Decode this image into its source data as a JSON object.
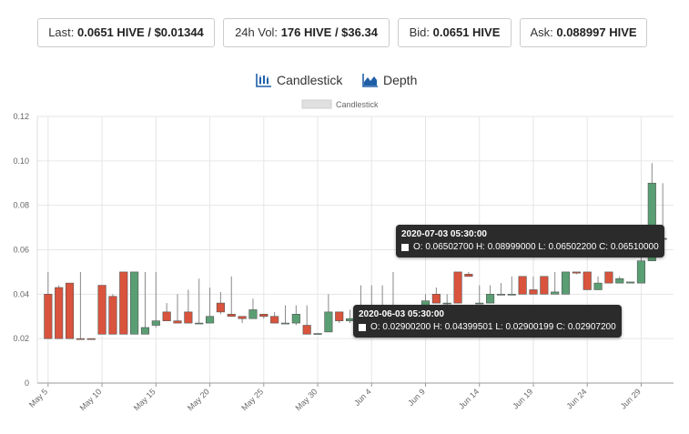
{
  "stats": [
    {
      "label": "Last:",
      "value": "0.0651 HIVE / $0.01344"
    },
    {
      "label": "24h Vol:",
      "value": "176 HIVE / $36.34"
    },
    {
      "label": "Bid:",
      "value": "0.0651 HIVE"
    },
    {
      "label": "Ask:",
      "value": "0.088997 HIVE"
    }
  ],
  "tabs": {
    "candlestick": {
      "label": "Candlestick",
      "icon": "candlestick-chart-icon"
    },
    "depth": {
      "label": "Depth",
      "icon": "depth-chart-icon"
    }
  },
  "colors": {
    "up": "#5a9e73",
    "down": "#d9533d",
    "accent": "#1f5fa8",
    "tooltip_bg": "#2b2b2b"
  },
  "tooltips": [
    {
      "title": "2020-07-03 05:30:00",
      "text": "O: 0.06502700  H: 0.08999000  L: 0.06502200  C: 0.06510000"
    },
    {
      "title": "2020-06-03 05:30:00",
      "text": "O: 0.02900200  H: 0.04399501  L: 0.02900199  C: 0.02907200"
    }
  ],
  "chart_data": {
    "type": "candlestick",
    "legend": [
      "Candlestick"
    ],
    "legend_position": "top-center",
    "grid": true,
    "ylim": [
      0,
      0.12
    ],
    "y_ticks": [
      "0",
      "0.02",
      "0.04",
      "0.06",
      "0.08",
      "0.10",
      "0.12"
    ],
    "x_ticks": [
      "May 5",
      "May 10",
      "May 15",
      "May 20",
      "May 25",
      "May 30",
      "Jun 4",
      "Jun 9",
      "Jun 14",
      "Jun 19",
      "Jun 24",
      "Jun 29"
    ],
    "series": [
      {
        "name": "Candlestick",
        "candles": [
          {
            "day": 5,
            "o": 0.04,
            "h": 0.05,
            "l": 0.02,
            "c": 0.02
          },
          {
            "day": 6,
            "o": 0.043,
            "h": 0.044,
            "l": 0.02,
            "c": 0.02
          },
          {
            "day": 7,
            "o": 0.045,
            "h": 0.045,
            "l": 0.02,
            "c": 0.02
          },
          {
            "day": 8,
            "o": 0.02,
            "h": 0.05,
            "l": 0.02,
            "c": 0.0198
          },
          {
            "day": 9,
            "o": 0.02,
            "h": 0.02,
            "l": 0.02,
            "c": 0.0198
          },
          {
            "day": 10,
            "o": 0.044,
            "h": 0.044,
            "l": 0.022,
            "c": 0.022
          },
          {
            "day": 11,
            "o": 0.039,
            "h": 0.04,
            "l": 0.022,
            "c": 0.022
          },
          {
            "day": 12,
            "o": 0.05,
            "h": 0.05,
            "l": 0.022,
            "c": 0.022
          },
          {
            "day": 13,
            "o": 0.022,
            "h": 0.05,
            "l": 0.022,
            "c": 0.05
          },
          {
            "day": 14,
            "o": 0.022,
            "h": 0.05,
            "l": 0.022,
            "c": 0.025
          },
          {
            "day": 15,
            "o": 0.026,
            "h": 0.05,
            "l": 0.025,
            "c": 0.028
          },
          {
            "day": 16,
            "o": 0.032,
            "h": 0.036,
            "l": 0.028,
            "c": 0.028
          },
          {
            "day": 17,
            "o": 0.028,
            "h": 0.04,
            "l": 0.027,
            "c": 0.027
          },
          {
            "day": 18,
            "o": 0.032,
            "h": 0.042,
            "l": 0.027,
            "c": 0.027
          },
          {
            "day": 19,
            "o": 0.027,
            "h": 0.047,
            "l": 0.027,
            "c": 0.027
          },
          {
            "day": 20,
            "o": 0.027,
            "h": 0.043,
            "l": 0.027,
            "c": 0.03
          },
          {
            "day": 21,
            "o": 0.036,
            "h": 0.041,
            "l": 0.031,
            "c": 0.032
          },
          {
            "day": 22,
            "o": 0.031,
            "h": 0.048,
            "l": 0.03,
            "c": 0.03
          },
          {
            "day": 23,
            "o": 0.03,
            "h": 0.03,
            "l": 0.027,
            "c": 0.029
          },
          {
            "day": 24,
            "o": 0.029,
            "h": 0.038,
            "l": 0.029,
            "c": 0.033
          },
          {
            "day": 25,
            "o": 0.031,
            "h": 0.031,
            "l": 0.029,
            "c": 0.03
          },
          {
            "day": 26,
            "o": 0.03,
            "h": 0.032,
            "l": 0.027,
            "c": 0.027
          },
          {
            "day": 27,
            "o": 0.027,
            "h": 0.035,
            "l": 0.027,
            "c": 0.027
          },
          {
            "day": 28,
            "o": 0.027,
            "h": 0.035,
            "l": 0.026,
            "c": 0.031
          },
          {
            "day": 29,
            "o": 0.026,
            "h": 0.035,
            "l": 0.022,
            "c": 0.022
          },
          {
            "day": 30,
            "o": 0.022,
            "h": 0.022,
            "l": 0.022,
            "c": 0.0223
          },
          {
            "day": 31,
            "o": 0.023,
            "h": 0.04,
            "l": 0.023,
            "c": 0.032
          },
          {
            "day": 32,
            "o": 0.032,
            "h": 0.032,
            "l": 0.027,
            "c": 0.028
          },
          {
            "day": 33,
            "o": 0.028,
            "h": 0.033,
            "l": 0.027,
            "c": 0.029
          },
          {
            "day": 34,
            "o": 0.029002,
            "h": 0.04399501,
            "l": 0.02900199,
            "c": 0.029072
          },
          {
            "day": 35,
            "o": 0.031,
            "h": 0.044,
            "l": 0.03,
            "c": 0.031
          },
          {
            "day": 36,
            "o": 0.031,
            "h": 0.044,
            "l": 0.03,
            "c": 0.031
          },
          {
            "day": 37,
            "o": 0.032,
            "h": 0.05,
            "l": 0.032,
            "c": 0.033
          },
          {
            "day": 38,
            "o": 0.033,
            "h": 0.034,
            "l": 0.033,
            "c": 0.034
          },
          {
            "day": 39,
            "o": 0.034,
            "h": 0.034,
            "l": 0.034,
            "c": 0.035
          },
          {
            "day": 40,
            "o": 0.035,
            "h": 0.04,
            "l": 0.035,
            "c": 0.037
          },
          {
            "day": 41,
            "o": 0.04,
            "h": 0.043,
            "l": 0.036,
            "c": 0.036
          },
          {
            "day": 42,
            "o": 0.036,
            "h": 0.04,
            "l": 0.035,
            "c": 0.036
          },
          {
            "day": 43,
            "o": 0.05,
            "h": 0.05,
            "l": 0.036,
            "c": 0.036
          },
          {
            "day": 44,
            "o": 0.049,
            "h": 0.05,
            "l": 0.048,
            "c": 0.048
          },
          {
            "day": 45,
            "o": 0.036,
            "h": 0.044,
            "l": 0.036,
            "c": 0.036
          },
          {
            "day": 46,
            "o": 0.036,
            "h": 0.044,
            "l": 0.036,
            "c": 0.04
          },
          {
            "day": 47,
            "o": 0.04,
            "h": 0.045,
            "l": 0.04,
            "c": 0.04
          },
          {
            "day": 48,
            "o": 0.04,
            "h": 0.048,
            "l": 0.04,
            "c": 0.04
          },
          {
            "day": 49,
            "o": 0.048,
            "h": 0.048,
            "l": 0.04,
            "c": 0.04
          },
          {
            "day": 50,
            "o": 0.042,
            "h": 0.048,
            "l": 0.04,
            "c": 0.04
          },
          {
            "day": 51,
            "o": 0.048,
            "h": 0.048,
            "l": 0.04,
            "c": 0.04
          },
          {
            "day": 52,
            "o": 0.04,
            "h": 0.05,
            "l": 0.04,
            "c": 0.041
          },
          {
            "day": 53,
            "o": 0.04,
            "h": 0.05,
            "l": 0.04,
            "c": 0.05
          },
          {
            "day": 54,
            "o": 0.05,
            "h": 0.05,
            "l": 0.049,
            "c": 0.0495
          },
          {
            "day": 55,
            "o": 0.05,
            "h": 0.05,
            "l": 0.042,
            "c": 0.042
          },
          {
            "day": 56,
            "o": 0.042,
            "h": 0.048,
            "l": 0.042,
            "c": 0.045
          },
          {
            "day": 57,
            "o": 0.05,
            "h": 0.05,
            "l": 0.045,
            "c": 0.045
          },
          {
            "day": 58,
            "o": 0.045,
            "h": 0.048,
            "l": 0.045,
            "c": 0.047
          },
          {
            "day": 59,
            "o": 0.045,
            "h": 0.045,
            "l": 0.045,
            "c": 0.0455
          },
          {
            "day": 60,
            "o": 0.045,
            "h": 0.057,
            "l": 0.045,
            "c": 0.055
          },
          {
            "day": 61,
            "o": 0.055,
            "h": 0.099,
            "l": 0.055,
            "c": 0.09
          },
          {
            "day": 62,
            "o": 0.065027,
            "h": 0.08999,
            "l": 0.065022,
            "c": 0.0651
          }
        ]
      }
    ]
  }
}
